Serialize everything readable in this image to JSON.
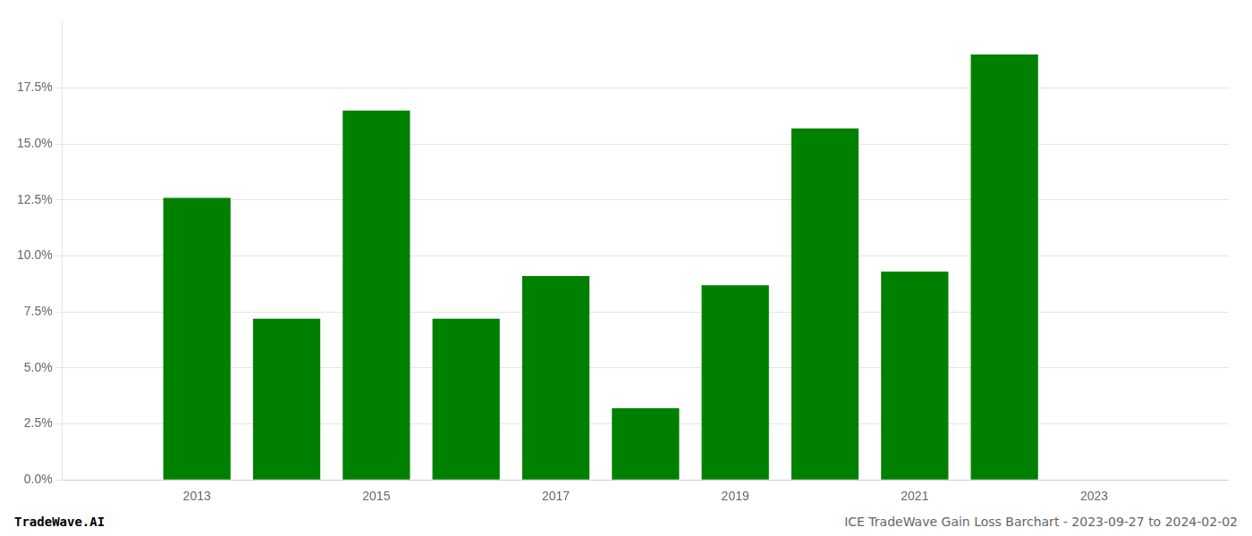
{
  "chart_data": {
    "type": "bar",
    "x": [
      2013,
      2014,
      2015,
      2016,
      2017,
      2018,
      2019,
      2020,
      2021,
      2022
    ],
    "values": [
      0.126,
      0.072,
      0.165,
      0.072,
      0.091,
      0.032,
      0.087,
      0.157,
      0.093,
      0.19
    ],
    "color": "#008000",
    "xlim": [
      2011.5,
      2024.5
    ],
    "xticks": [
      2013,
      2015,
      2017,
      2019,
      2021,
      2023
    ],
    "ylim": [
      0.0,
      0.205
    ],
    "yticks": [
      {
        "value": 0.0,
        "label": "0.0%"
      },
      {
        "value": 0.025,
        "label": "2.5%"
      },
      {
        "value": 0.05,
        "label": "5.0%"
      },
      {
        "value": 0.075,
        "label": "7.5%"
      },
      {
        "value": 0.1,
        "label": "10.0%"
      },
      {
        "value": 0.125,
        "label": "12.5%"
      },
      {
        "value": 0.15,
        "label": "15.0%"
      },
      {
        "value": 0.175,
        "label": "17.5%"
      }
    ],
    "grid": true,
    "annotations": [
      "TradeWave.AI",
      "ICE TradeWave Gain Loss Barchart - 2023-09-27 to 2024-02-02"
    ]
  }
}
